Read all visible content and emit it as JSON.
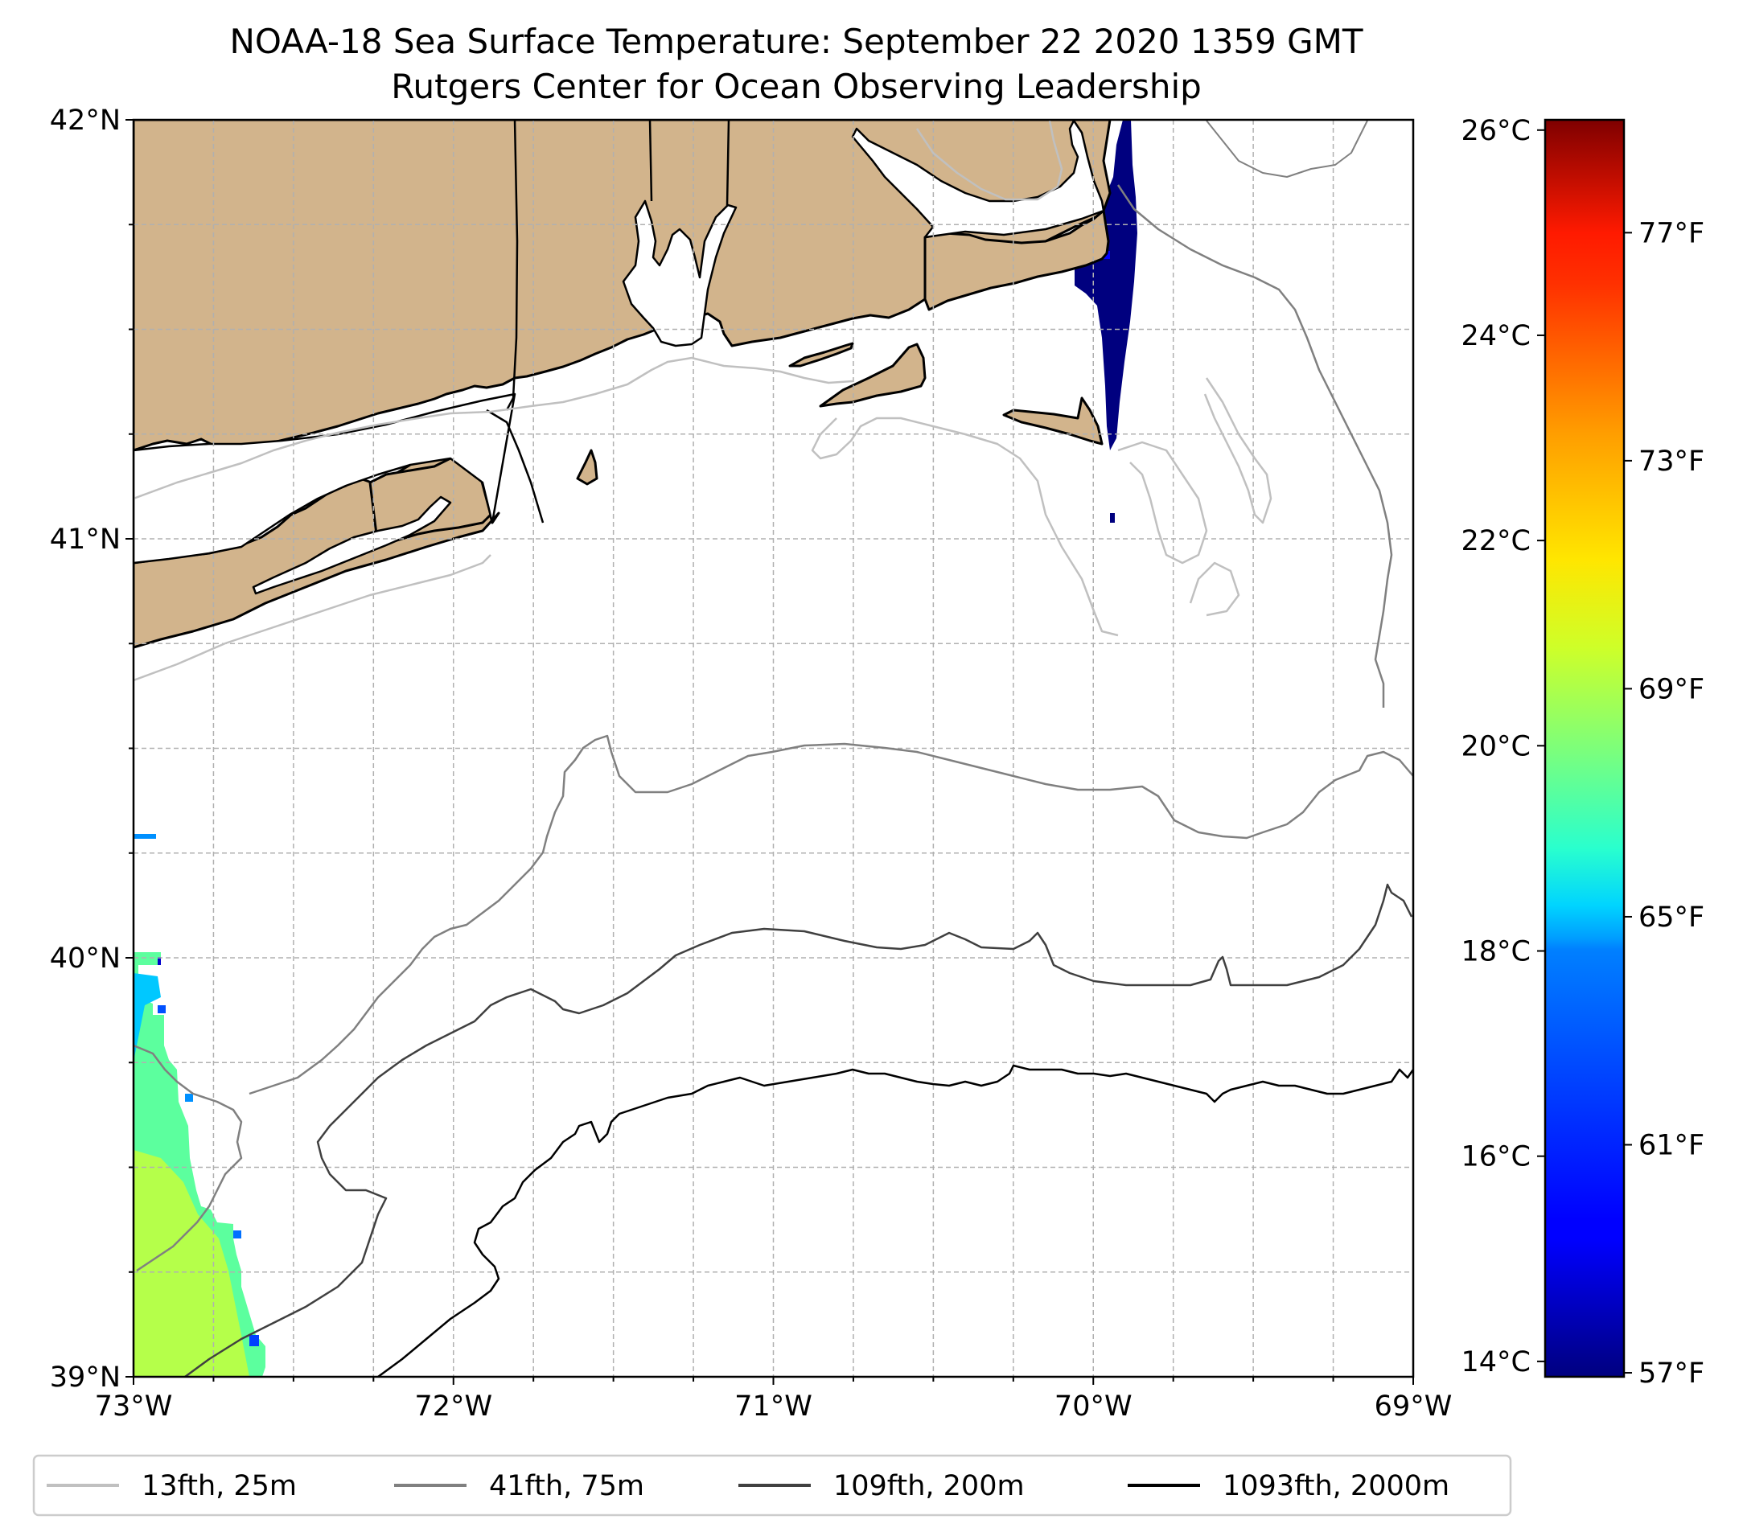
{
  "title": {
    "line1": "NOAA-18 Sea Surface Temperature: September 22 2020 1359 GMT",
    "line2": "Rutgers Center for Ocean Observing Leadership"
  },
  "map": {
    "lon_range": [
      -73,
      -69
    ],
    "lat_range": [
      39,
      42
    ],
    "land_color": "#d2b48c",
    "grid": true,
    "lon_ticks": [
      {
        "value": -73,
        "label": "73°W"
      },
      {
        "value": -72,
        "label": "72°W"
      },
      {
        "value": -71,
        "label": "71°W"
      },
      {
        "value": -70,
        "label": "70°W"
      },
      {
        "value": -69,
        "label": "69°W"
      }
    ],
    "lat_ticks": [
      {
        "value": 42,
        "label": "42°N"
      },
      {
        "value": 41,
        "label": "41°N"
      },
      {
        "value": 40,
        "label": "40°N"
      },
      {
        "value": 39,
        "label": "39°N"
      }
    ]
  },
  "colorbar": {
    "colormap": "jet",
    "range_c": [
      13.85,
      26.1
    ],
    "celsius_ticks": [
      {
        "value": 14,
        "label": "14°C"
      },
      {
        "value": 16,
        "label": "16°C"
      },
      {
        "value": 18,
        "label": "18°C"
      },
      {
        "value": 20,
        "label": "20°C"
      },
      {
        "value": 22,
        "label": "22°C"
      },
      {
        "value": 24,
        "label": "24°C"
      },
      {
        "value": 26,
        "label": "26°C"
      }
    ],
    "fahrenheit_ticks": [
      {
        "value": 57,
        "label": "57°F"
      },
      {
        "value": 61,
        "label": "61°F"
      },
      {
        "value": 65,
        "label": "65°F"
      },
      {
        "value": 69,
        "label": "69°F"
      },
      {
        "value": 73,
        "label": "73°F"
      },
      {
        "value": 77,
        "label": "77°F"
      }
    ]
  },
  "legend": {
    "placement": "bottom",
    "items": [
      {
        "label": "13fth, 25m",
        "color": "#c0c0c0"
      },
      {
        "label": "41fth, 75m",
        "color": "#808080"
      },
      {
        "label": "109fth, 200m",
        "color": "#404040"
      },
      {
        "label": "1093fth, 2000m",
        "color": "#000000"
      }
    ]
  }
}
